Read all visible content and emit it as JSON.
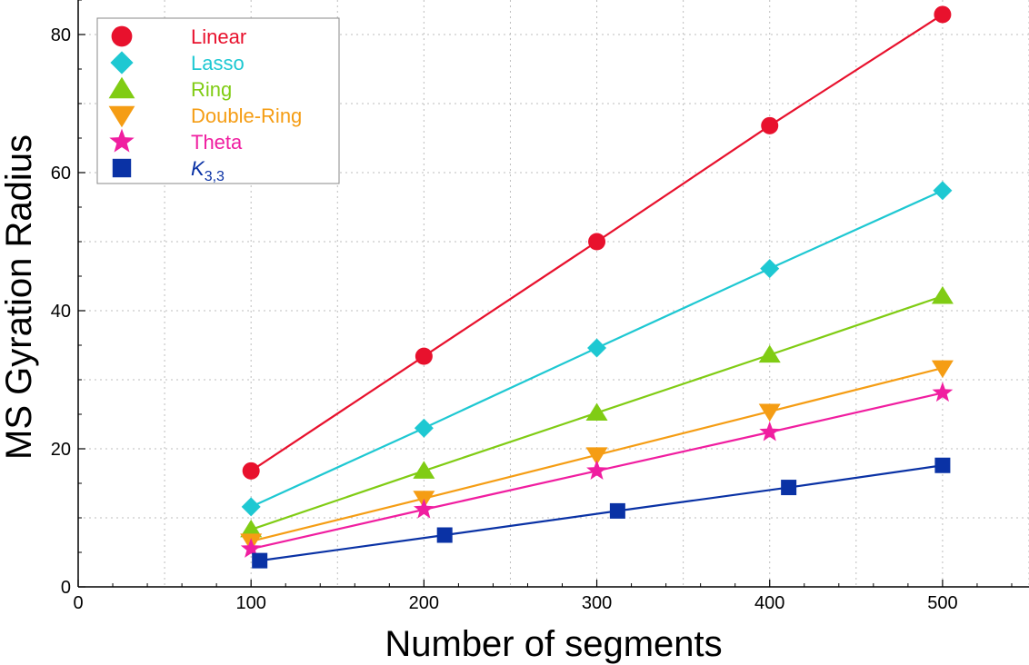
{
  "chart_data": {
    "type": "line",
    "title": "",
    "xlabel": "Number of segments",
    "ylabel": "MS Gyration Radius",
    "xlim": [
      0,
      550
    ],
    "ylim": [
      0,
      85
    ],
    "x_ticks": [
      0,
      100,
      200,
      300,
      400,
      500
    ],
    "y_ticks": [
      0,
      20,
      40,
      60,
      80
    ],
    "grid": true,
    "legend_position": "top-left",
    "series": [
      {
        "name": "Linear",
        "color": "#e8112d",
        "marker": "circle",
        "x": [
          100,
          200,
          300,
          400,
          500
        ],
        "y": [
          16.8,
          33.4,
          50.0,
          66.8,
          82.9
        ]
      },
      {
        "name": "Lasso",
        "color": "#1ec8d2",
        "marker": "diamond",
        "x": [
          100,
          200,
          300,
          400,
          500
        ],
        "y": [
          11.6,
          23.0,
          34.6,
          46.1,
          57.4
        ]
      },
      {
        "name": "Ring",
        "color": "#80cc14",
        "marker": "triangle-up",
        "x": [
          100,
          200,
          300,
          400,
          500
        ],
        "y": [
          8.3,
          16.8,
          25.2,
          33.6,
          42.1
        ]
      },
      {
        "name": "Double-Ring",
        "color": "#f59d14",
        "marker": "triangle-down",
        "x": [
          100,
          200,
          300,
          400,
          500
        ],
        "y": [
          6.6,
          12.8,
          19.1,
          25.4,
          31.7
        ]
      },
      {
        "name": "Theta",
        "color": "#f01ea0",
        "marker": "star",
        "x": [
          100,
          200,
          300,
          400,
          500
        ],
        "y": [
          5.5,
          11.2,
          16.8,
          22.4,
          28.1
        ]
      },
      {
        "name": "K3,3",
        "color": "#0a32a5",
        "marker": "square",
        "x": [
          105,
          212,
          312,
          411,
          500
        ],
        "y": [
          3.8,
          7.5,
          11.0,
          14.4,
          17.6
        ]
      }
    ]
  }
}
